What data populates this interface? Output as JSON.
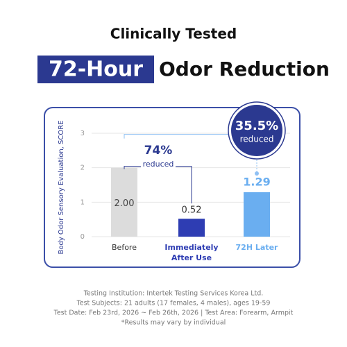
{
  "heading": {
    "line1": "Clinically Tested",
    "highlight": "72-Hour",
    "rest": "Odor Reduction"
  },
  "chart_data": {
    "type": "bar",
    "ylabel": "Body Odor Sensory Evaluation, SCORE",
    "categories": [
      "Before",
      "Immediately After Use",
      "72H Later"
    ],
    "values": [
      2.0,
      0.52,
      1.29
    ],
    "value_labels": [
      "2.00",
      "0.52",
      "1.29"
    ],
    "colors": [
      "#dcdcdc",
      "#2e3db3",
      "#6aaef0"
    ],
    "ylim": [
      0,
      3
    ],
    "yticks": [
      0,
      1,
      2,
      3
    ],
    "grid": true,
    "annotations": [
      {
        "text": "74%",
        "sub": "reduced"
      },
      {
        "text": "35.5%",
        "sub": "reduced"
      }
    ]
  },
  "footer": [
    "Testing Institution: Intertek Testing Services Korea Ltd.",
    "Test Subjects: 21 adults (17 females, 4 males), ages 19-59",
    "Test Date: Feb 23rd, 2026 ~ Feb 26th, 2026 | Test Area: Forearm, Armpit",
    "*Results may vary by individual"
  ]
}
